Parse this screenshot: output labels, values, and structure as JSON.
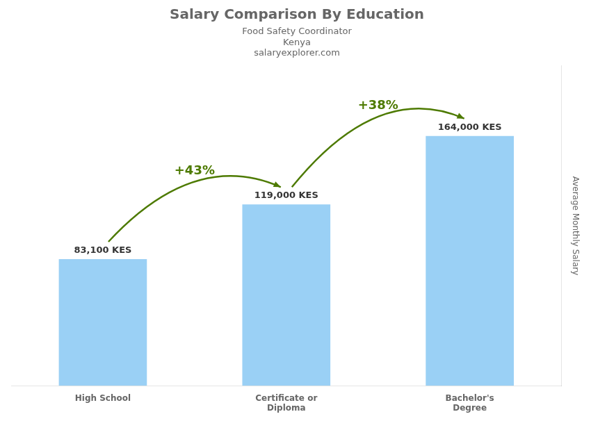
{
  "chart_data": {
    "type": "bar",
    "title": "Salary Comparison By Education",
    "subtitle": "Food Safety Coordinator",
    "y_label": "Average Monthly Salary",
    "categories": [
      "High School",
      "Certificate or\nDiploma",
      "Bachelor's\nDegree"
    ],
    "values": [
      83100,
      119000,
      164000
    ],
    "value_labels": [
      "83,100 KES",
      "119,000 KES",
      "164,000 KES"
    ],
    "data_labels": true,
    "ylim": [
      0,
      210000
    ],
    "grid": false,
    "tick_labels": "x",
    "annotations": [
      {
        "text": "Kenya"
      },
      {
        "text": "salaryexplorer.com"
      },
      {
        "text": "+43%",
        "from": "High School",
        "to": "Certificate or\nDiploma"
      },
      {
        "text": "+38%",
        "from": "Certificate or\nDiploma",
        "to": "Bachelor's\nDegree"
      }
    ]
  }
}
